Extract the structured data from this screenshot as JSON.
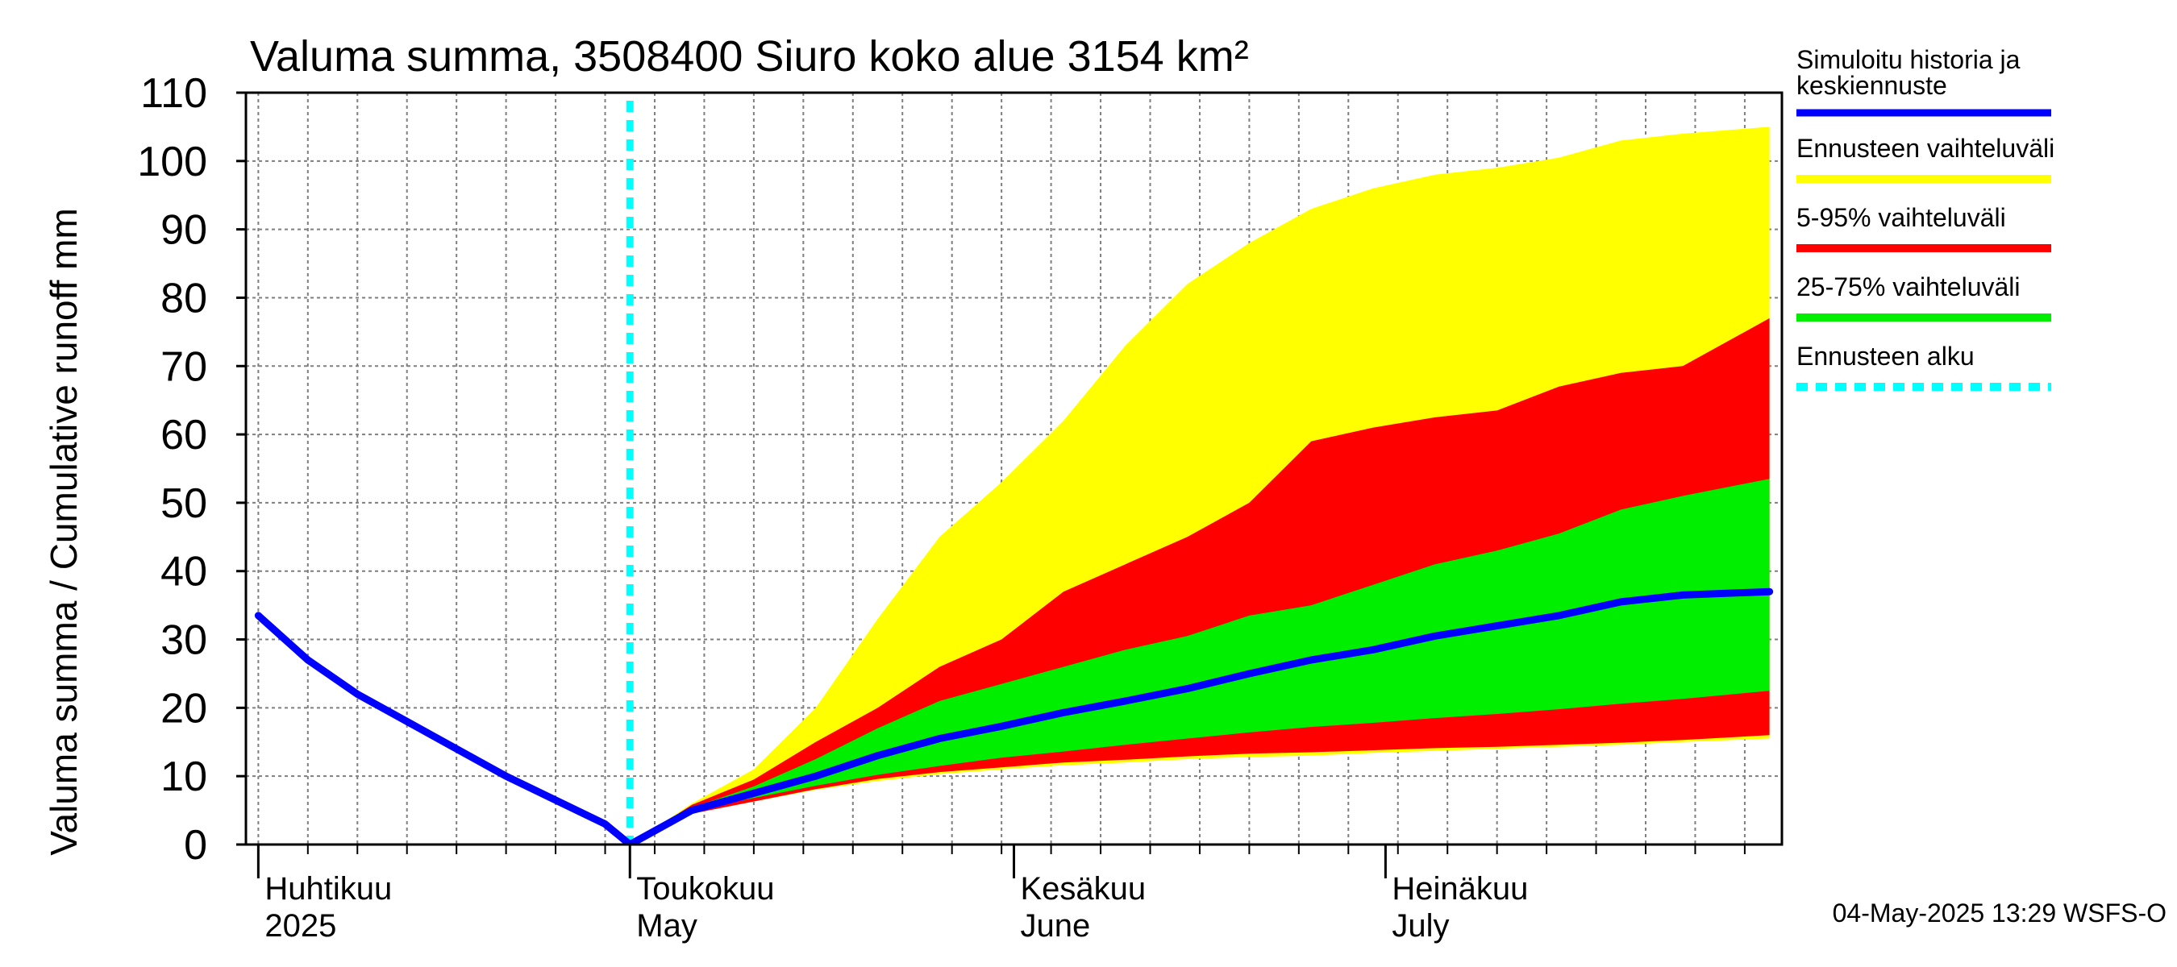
{
  "chart_data": {
    "type": "area",
    "title": "Valuma summa, 3508400 Siuro koko alue 3154 km²",
    "ylabel": "Valuma summa / Cumulative runoff    mm",
    "ylim": [
      0,
      110
    ],
    "yticks": [
      0,
      10,
      20,
      30,
      40,
      50,
      60,
      70,
      80,
      90,
      100,
      110
    ],
    "xlim": [
      "2025-03-31",
      "2025-08-02"
    ],
    "forecast_start": "2025-05-01",
    "month_labels": [
      {
        "date": "2025-04-01",
        "fi": "Huhtikuu",
        "en": "2025"
      },
      {
        "date": "2025-05-01",
        "fi": "Toukokuu",
        "en": "May"
      },
      {
        "date": "2025-06-01",
        "fi": "Kesäkuu",
        "en": "June"
      },
      {
        "date": "2025-07-01",
        "fi": "Heinäkuu",
        "en": "July"
      }
    ],
    "legend": [
      {
        "label": "Simuloitu historia ja keskiennuste",
        "color": "#0000ff",
        "style": "line"
      },
      {
        "label": "Ennusteen vaihteluväli",
        "color": "#ffff00",
        "style": "line"
      },
      {
        "label": "5-95% vaihteluväli",
        "color": "#ff0000",
        "style": "line"
      },
      {
        "label": "25-75% vaihteluväli",
        "color": "#00ee00",
        "style": "line"
      },
      {
        "label": "Ennusteen alku",
        "color": "#00ffff",
        "style": "dotted"
      }
    ],
    "x": [
      "2025-05-01",
      "2025-05-06",
      "2025-05-11",
      "2025-05-16",
      "2025-05-21",
      "2025-05-26",
      "2025-05-31",
      "2025-06-05",
      "2025-06-10",
      "2025-06-15",
      "2025-06-20",
      "2025-06-25",
      "2025-06-30",
      "2025-07-05",
      "2025-07-10",
      "2025-07-15",
      "2025-07-20",
      "2025-07-25",
      "2025-08-01"
    ],
    "bands": {
      "envelope_low": [
        0,
        4.5,
        6.3,
        8.0,
        9.3,
        10.3,
        11.0,
        11.6,
        12.0,
        12.5,
        12.8,
        13.0,
        13.4,
        13.7,
        14.0,
        14.3,
        14.6,
        15.0,
        15.5
      ],
      "envelope_high": [
        0,
        6.0,
        11.0,
        20.0,
        33.0,
        45.0,
        53.0,
        62.0,
        73.0,
        82.0,
        88.0,
        93.0,
        96.0,
        98.0,
        99.0,
        100.5,
        103.0,
        104.0,
        105.0
      ],
      "p5": [
        0,
        4.5,
        6.3,
        8.1,
        9.6,
        10.6,
        11.3,
        12.0,
        12.4,
        12.9,
        13.3,
        13.5,
        13.8,
        14.1,
        14.3,
        14.6,
        14.9,
        15.3,
        16.0
      ],
      "p95": [
        0,
        5.8,
        9.5,
        15.0,
        20.0,
        26.0,
        30.0,
        37.0,
        41.0,
        45.0,
        50.0,
        59.0,
        61.0,
        62.5,
        63.5,
        67.0,
        69.0,
        70.0,
        77.0
      ],
      "p25": [
        0,
        5.0,
        6.8,
        8.6,
        10.2,
        11.5,
        12.7,
        13.6,
        14.6,
        15.5,
        16.4,
        17.2,
        17.8,
        18.5,
        19.1,
        19.8,
        20.6,
        21.3,
        22.5
      ],
      "p75": [
        0,
        5.4,
        8.5,
        12.5,
        17.0,
        21.0,
        23.5,
        26.0,
        28.5,
        30.5,
        33.5,
        35.0,
        38.0,
        41.0,
        43.0,
        45.5,
        49.0,
        51.0,
        53.5
      ]
    },
    "series": [
      {
        "name": "Simuloitu historia ja keskiennuste",
        "color": "#0000ff",
        "x": [
          "2025-04-01",
          "2025-04-05",
          "2025-04-09",
          "2025-04-13",
          "2025-04-17",
          "2025-04-21",
          "2025-04-25",
          "2025-04-29",
          "2025-05-01",
          "2025-05-06",
          "2025-05-11",
          "2025-05-16",
          "2025-05-21",
          "2025-05-26",
          "2025-05-31",
          "2025-06-05",
          "2025-06-10",
          "2025-06-15",
          "2025-06-20",
          "2025-06-25",
          "2025-06-30",
          "2025-07-05",
          "2025-07-10",
          "2025-07-15",
          "2025-07-20",
          "2025-07-25",
          "2025-08-01"
        ],
        "values": [
          33.5,
          27.0,
          22.0,
          18.0,
          14.0,
          10.0,
          6.5,
          3.0,
          0.0,
          5.0,
          7.5,
          10.0,
          13.0,
          15.5,
          17.3,
          19.3,
          21.0,
          22.8,
          25.0,
          27.0,
          28.5,
          30.5,
          32.0,
          33.5,
          35.5,
          36.5,
          37.0
        ]
      }
    ]
  },
  "footer": {
    "timestamp": "04-May-2025 13:29 WSFS-O"
  }
}
